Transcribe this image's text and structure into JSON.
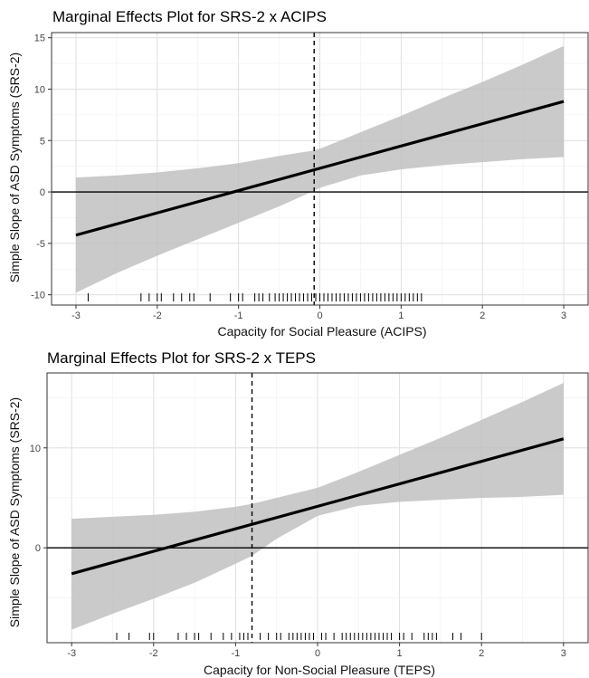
{
  "chart_data": [
    {
      "type": "line",
      "title": "Marginal Effects Plot for SRS-2 x ACIPS",
      "xlabel": "Capacity for Social Pleasure (ACIPS)",
      "ylabel": "Simple Slope of ASD Symptoms (SRS-2)",
      "xlim": [
        -3.3,
        3.3
      ],
      "ylim": [
        -11,
        15.5
      ],
      "xticks": [
        -3,
        -2,
        -1,
        0,
        1,
        2,
        3
      ],
      "yticks": [
        -10,
        -5,
        0,
        5,
        10,
        15
      ],
      "grid": true,
      "series": [
        {
          "x": [
            -3,
            3
          ],
          "y": [
            -4.2,
            8.8
          ]
        }
      ],
      "confidence_band": {
        "x": [
          -3,
          -2.5,
          -2,
          -1.5,
          -1,
          -0.5,
          -0.1,
          0,
          0.5,
          1,
          1.5,
          2,
          2.5,
          3
        ],
        "lower": [
          -9.8,
          -7.9,
          -6.2,
          -4.6,
          -3.0,
          -1.4,
          0.0,
          0.4,
          1.6,
          2.2,
          2.6,
          2.9,
          3.2,
          3.4
        ],
        "upper": [
          1.4,
          1.6,
          1.9,
          2.3,
          2.8,
          3.5,
          4.0,
          4.2,
          5.8,
          7.4,
          9.1,
          10.7,
          12.4,
          14.2
        ]
      },
      "hline": 0,
      "vline": -0.07,
      "rug": [
        -2.85,
        -2.2,
        -2.1,
        -2.0,
        -1.95,
        -1.8,
        -1.7,
        -1.6,
        -1.55,
        -1.35,
        -1.1,
        -1.0,
        -0.95,
        -0.8,
        -0.75,
        -0.7,
        -0.62,
        -0.55,
        -0.5,
        -0.45,
        -0.4,
        -0.35,
        -0.3,
        -0.25,
        -0.2,
        -0.15,
        -0.1,
        -0.05,
        0.0,
        0.05,
        0.1,
        0.15,
        0.2,
        0.25,
        0.3,
        0.35,
        0.4,
        0.45,
        0.5,
        0.55,
        0.6,
        0.65,
        0.7,
        0.75,
        0.8,
        0.85,
        0.9,
        0.95,
        1.0,
        1.05,
        1.1,
        1.15,
        1.2,
        1.25
      ]
    },
    {
      "type": "line",
      "title": "Marginal Effects Plot for SRS-2 x TEPS",
      "xlabel": "Capacity for Non-Social Pleasure (TEPS)",
      "ylabel": "Simple Slope of ASD Symptoms (SRS-2)",
      "xlim": [
        -3.3,
        3.3
      ],
      "ylim": [
        -9.5,
        17.5
      ],
      "xticks": [
        -3,
        -2,
        -1,
        0,
        1,
        2,
        3
      ],
      "yticks": [
        0,
        10
      ],
      "grid": true,
      "series": [
        {
          "x": [
            -3,
            3
          ],
          "y": [
            -2.6,
            10.9
          ]
        }
      ],
      "confidence_band": {
        "x": [
          -3,
          -2.5,
          -2,
          -1.5,
          -1,
          -0.8,
          -0.5,
          0,
          0.5,
          1,
          1.5,
          2,
          2.5,
          3
        ],
        "lower": [
          -8.2,
          -6.6,
          -5.1,
          -3.5,
          -1.6,
          -0.8,
          0.9,
          3.2,
          4.2,
          4.6,
          4.8,
          5.0,
          5.1,
          5.3
        ],
        "upper": [
          2.9,
          3.1,
          3.3,
          3.6,
          4.1,
          4.4,
          5.0,
          6.0,
          7.6,
          9.3,
          11.0,
          12.8,
          14.6,
          16.5
        ]
      },
      "hline": 0,
      "vline": -0.8,
      "rug": [
        -2.45,
        -2.3,
        -2.05,
        -2.0,
        -1.7,
        -1.6,
        -1.5,
        -1.45,
        -1.3,
        -1.15,
        -1.05,
        -0.95,
        -0.9,
        -0.85,
        -0.7,
        -0.6,
        -0.5,
        -0.45,
        -0.35,
        -0.3,
        -0.25,
        -0.2,
        -0.15,
        -0.1,
        -0.05,
        0.05,
        0.1,
        0.2,
        0.3,
        0.35,
        0.4,
        0.45,
        0.5,
        0.55,
        0.6,
        0.65,
        0.7,
        0.75,
        0.8,
        0.85,
        0.9,
        1.0,
        1.05,
        1.15,
        1.3,
        1.35,
        1.4,
        1.45,
        1.65,
        1.75,
        2.0
      ]
    }
  ]
}
